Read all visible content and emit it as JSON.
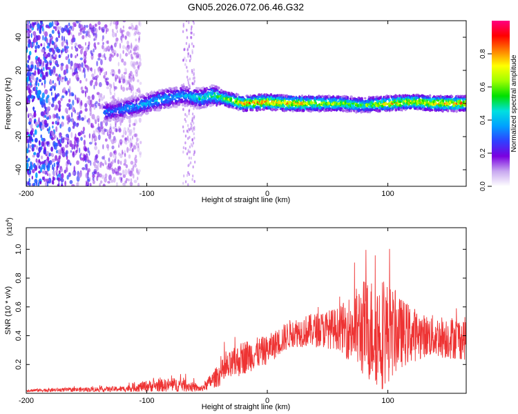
{
  "title": "GN05.2026.072.06.46.G32",
  "chart_data": [
    {
      "type": "heatmap",
      "name": "spectrogram",
      "xlabel": "Height of straight line (km)",
      "ylabel": "Frequency (Hz)",
      "xlim": [
        -200,
        165
      ],
      "ylim": [
        -50,
        50
      ],
      "xticks": [
        -200,
        -100,
        0,
        100
      ],
      "yticks": [
        -40,
        -20,
        0,
        20,
        40
      ],
      "colorbar": {
        "label": "Normalized spectral amplitude",
        "range": [
          0,
          1
        ],
        "ticks": [
          0.0,
          0.2,
          0.4,
          0.6,
          0.8
        ],
        "tick_labels": [
          "0.0",
          "0.2",
          "0.4",
          "0.6",
          "0.8"
        ],
        "colormap": [
          "#ffffff",
          "#c8a8f0",
          "#7a00e0",
          "#3040ff",
          "#00a0ff",
          "#00e0e0",
          "#00e000",
          "#a0ff00",
          "#ffff00",
          "#ff8000",
          "#ff0000",
          "#ff0080"
        ]
      },
      "ridge": [
        {
          "x": -130,
          "y": -5,
          "amp": 0.35
        },
        {
          "x": -110,
          "y": -2,
          "amp": 0.4
        },
        {
          "x": -90,
          "y": 2,
          "amp": 0.45
        },
        {
          "x": -70,
          "y": 5,
          "amp": 0.4
        },
        {
          "x": -55,
          "y": 3,
          "amp": 0.5
        },
        {
          "x": -45,
          "y": 5,
          "amp": 0.55
        },
        {
          "x": -30,
          "y": 2,
          "amp": 0.7
        },
        {
          "x": -20,
          "y": 0,
          "amp": 0.8
        },
        {
          "x": 0,
          "y": 1,
          "amp": 0.9
        },
        {
          "x": 20,
          "y": 0,
          "amp": 0.85
        },
        {
          "x": 40,
          "y": 0,
          "amp": 0.75
        },
        {
          "x": 60,
          "y": 0,
          "amp": 0.7
        },
        {
          "x": 80,
          "y": -1,
          "amp": 0.6
        },
        {
          "x": 100,
          "y": 0,
          "amp": 0.8
        },
        {
          "x": 120,
          "y": 1,
          "amp": 0.75
        },
        {
          "x": 140,
          "y": 0,
          "amp": 0.85
        },
        {
          "x": 165,
          "y": 0,
          "amp": 0.8
        }
      ]
    },
    {
      "type": "line",
      "name": "snr",
      "xlabel": "Height of straight line (km)",
      "ylabel": "SNR (10 * v/v)",
      "scale_label": "(x10",
      "scale_exponent": "4",
      "scale_close": ")",
      "xlim": [
        -200,
        165
      ],
      "ylim": [
        0,
        1.15
      ],
      "xticks": [
        -200,
        -100,
        0,
        100
      ],
      "yticks": [
        0.2,
        0.4,
        0.6,
        0.8,
        1.0
      ],
      "ytick_labels": [
        "0.2",
        "0.4",
        "0.6",
        "0.8",
        "1.0"
      ],
      "color": "#ee3333",
      "envelope": [
        {
          "x": -200,
          "base": 0.02,
          "amp": 0.01
        },
        {
          "x": -120,
          "base": 0.03,
          "amp": 0.02
        },
        {
          "x": -100,
          "base": 0.05,
          "amp": 0.04
        },
        {
          "x": -70,
          "base": 0.06,
          "amp": 0.05
        },
        {
          "x": -55,
          "base": 0.03,
          "amp": 0.02
        },
        {
          "x": -35,
          "base": 0.16,
          "amp": 0.1
        },
        {
          "x": -20,
          "base": 0.25,
          "amp": 0.12
        },
        {
          "x": 0,
          "base": 0.3,
          "amp": 0.1
        },
        {
          "x": 20,
          "base": 0.42,
          "amp": 0.1
        },
        {
          "x": 40,
          "base": 0.44,
          "amp": 0.12
        },
        {
          "x": 60,
          "base": 0.45,
          "amp": 0.15
        },
        {
          "x": 80,
          "base": 0.45,
          "amp": 0.35
        },
        {
          "x": 95,
          "base": 0.42,
          "amp": 0.4
        },
        {
          "x": 110,
          "base": 0.42,
          "amp": 0.25
        },
        {
          "x": 130,
          "base": 0.4,
          "amp": 0.15
        },
        {
          "x": 165,
          "base": 0.38,
          "amp": 0.15
        }
      ]
    }
  ]
}
